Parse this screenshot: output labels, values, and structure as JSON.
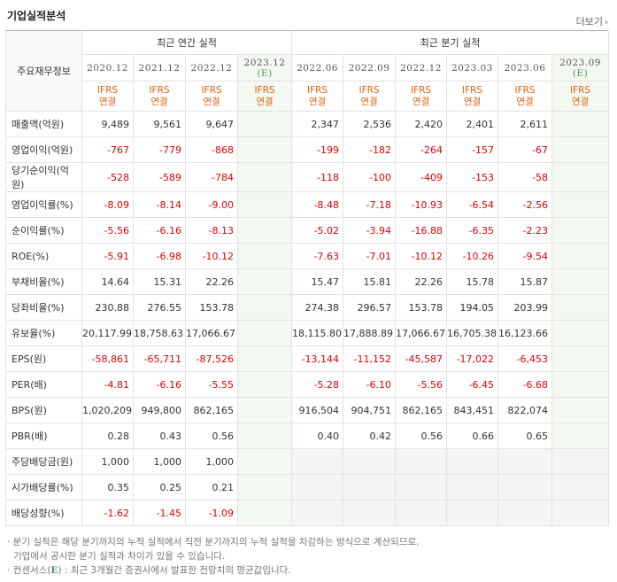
{
  "title": "기업실적분석",
  "more_label": "더보기",
  "table": {
    "label_header": "주요재무정보",
    "annual_header": "최근 연간 실적",
    "quarter_header": "최근 분기 실적",
    "annual_periods": [
      "2020.12",
      "2021.12",
      "2022.12",
      "2023.12"
    ],
    "quarter_periods": [
      "2022.06",
      "2022.09",
      "2022.12",
      "2023.03",
      "2023.06",
      "2023.09"
    ],
    "estimate_mark": "(E)",
    "ifrs_top": "IFRS",
    "ifrs_bottom": "연결",
    "rows": [
      {
        "label": "매출액(억원)",
        "a": [
          "9,489",
          "9,561",
          "9,647",
          ""
        ],
        "q": [
          "2,347",
          "2,536",
          "2,420",
          "2,401",
          "2,611",
          ""
        ]
      },
      {
        "label": "영업이익(억원)",
        "a": [
          "-767",
          "-779",
          "-868",
          ""
        ],
        "q": [
          "-199",
          "-182",
          "-264",
          "-157",
          "-67",
          ""
        ]
      },
      {
        "label": "당기순이익(억원)",
        "a": [
          "-528",
          "-589",
          "-784",
          ""
        ],
        "q": [
          "-118",
          "-100",
          "-409",
          "-153",
          "-58",
          ""
        ]
      },
      {
        "label": "영업이익률(%)",
        "a": [
          "-8.09",
          "-8.14",
          "-9.00",
          ""
        ],
        "q": [
          "-8.48",
          "-7.18",
          "-10.93",
          "-6.54",
          "-2.56",
          ""
        ]
      },
      {
        "label": "순이익률(%)",
        "a": [
          "-5.56",
          "-6.16",
          "-8.13",
          ""
        ],
        "q": [
          "-5.02",
          "-3.94",
          "-16.88",
          "-6.35",
          "-2.23",
          ""
        ]
      },
      {
        "label": "ROE(%)",
        "a": [
          "-5.91",
          "-6.98",
          "-10.12",
          ""
        ],
        "q": [
          "-7.63",
          "-7.01",
          "-10.12",
          "-10.26",
          "-9.54",
          ""
        ]
      },
      {
        "label": "부채비율(%)",
        "a": [
          "14.64",
          "15.31",
          "22.26",
          ""
        ],
        "q": [
          "15.47",
          "15.81",
          "22.26",
          "15.78",
          "15.87",
          ""
        ]
      },
      {
        "label": "당좌비율(%)",
        "a": [
          "230.88",
          "276.55",
          "153.78",
          ""
        ],
        "q": [
          "274.38",
          "296.57",
          "153.78",
          "194.05",
          "203.99",
          ""
        ]
      },
      {
        "label": "유보율(%)",
        "a": [
          "20,117.99",
          "18,758.63",
          "17,066.67",
          ""
        ],
        "q": [
          "18,115.80",
          "17,888.89",
          "17,066.67",
          "16,705.38",
          "16,123.66",
          ""
        ]
      },
      {
        "label": "EPS(원)",
        "a": [
          "-58,861",
          "-65,711",
          "-87,526",
          ""
        ],
        "q": [
          "-13,144",
          "-11,152",
          "-45,587",
          "-17,022",
          "-6,453",
          ""
        ]
      },
      {
        "label": "PER(배)",
        "a": [
          "-4.81",
          "-6.16",
          "-5.55",
          ""
        ],
        "q": [
          "-5.28",
          "-6.10",
          "-5.56",
          "-6.45",
          "-6.68",
          ""
        ]
      },
      {
        "label": "BPS(원)",
        "a": [
          "1,020,209",
          "949,800",
          "862,165",
          ""
        ],
        "q": [
          "916,504",
          "904,751",
          "862,165",
          "843,451",
          "822,074",
          ""
        ]
      },
      {
        "label": "PBR(배)",
        "a": [
          "0.28",
          "0.43",
          "0.56",
          ""
        ],
        "q": [
          "0.40",
          "0.42",
          "0.56",
          "0.66",
          "0.65",
          ""
        ]
      },
      {
        "label": "주당배당금(원)",
        "a": [
          "1,000",
          "1,000",
          "1,000",
          ""
        ],
        "q": null
      },
      {
        "label": "시가배당률(%)",
        "a": [
          "0.35",
          "0.25",
          "0.21",
          ""
        ],
        "q": null
      },
      {
        "label": "배당성향(%)",
        "a": [
          "-1.62",
          "-1.45",
          "-1.09",
          ""
        ],
        "q": null
      }
    ]
  },
  "notes": {
    "line1": "· 분기 실적은 해당 분기까지의 누적 실적에서 직전 분기까지의 누적 실적을 차감하는 방식으로 계산되므로,",
    "line2": "기업에서 공시한 분기 실적과 차이가 있을 수 있습니다.",
    "line3_prefix": "· 컨센서스(",
    "line3_mark": "E",
    "line3_suffix": ") : 최근 3개월간 증권사에서 발표한 전망치의 평균값입니다."
  },
  "colors": {
    "negative": "#e00000",
    "ifrs": "#e06010",
    "estimate_bg": "#f3f9f1",
    "estimate_text": "#4f8f4f"
  }
}
